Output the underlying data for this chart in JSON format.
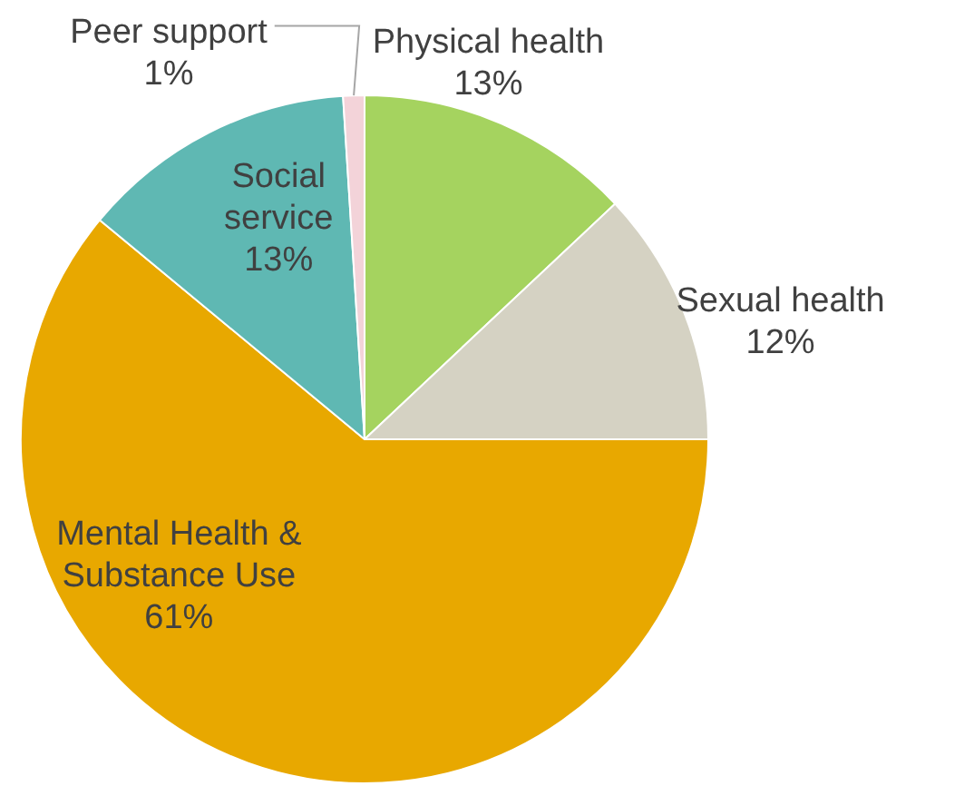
{
  "chart_data": {
    "type": "pie",
    "categories": [
      "Physical health",
      "Sexual health",
      "Mental Health & Substance Use",
      "Social service",
      "Peer support"
    ],
    "values": [
      13,
      12,
      61,
      13,
      1
    ],
    "colors": [
      "#a5d35f",
      "#d5d2c3",
      "#e8a800",
      "#5fb8b3",
      "#f3d3d9"
    ],
    "value_labels": [
      "13%",
      "12%",
      "61%",
      "13%",
      "1%"
    ],
    "legend": false
  }
}
